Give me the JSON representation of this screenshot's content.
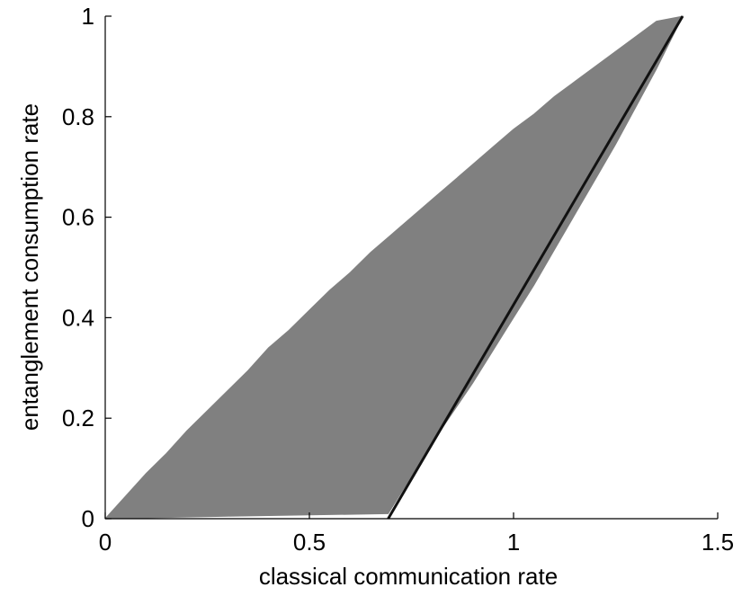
{
  "chart_data": {
    "type": "area",
    "title": "",
    "xlabel": "classical communication rate",
    "ylabel": "entanglement consumption rate",
    "xlim": [
      0,
      1.5
    ],
    "ylim": [
      0,
      1
    ],
    "xticks": [
      "0",
      "0.5",
      "1",
      "1.5"
    ],
    "yticks": [
      "0",
      "0.2",
      "0.4",
      "0.6",
      "0.8",
      "1"
    ],
    "grid": false,
    "legend": "none",
    "colors": {
      "region_fill": "#808080",
      "boundary_line": "#111111",
      "axis": "#000000"
    },
    "region": {
      "name": "",
      "upper_boundary": {
        "x": [
          0,
          0.05,
          0.1,
          0.15,
          0.2,
          0.25,
          0.3,
          0.35,
          0.4,
          0.45,
          0.5,
          0.55,
          0.6,
          0.65,
          0.7,
          0.75,
          0.8,
          0.85,
          0.9,
          0.95,
          1.0,
          1.05,
          1.1,
          1.15,
          1.2,
          1.25,
          1.3,
          1.35,
          1.414
        ],
        "y": [
          0,
          0.045,
          0.09,
          0.13,
          0.175,
          0.215,
          0.255,
          0.295,
          0.34,
          0.375,
          0.415,
          0.455,
          0.49,
          0.53,
          0.565,
          0.6,
          0.635,
          0.67,
          0.705,
          0.74,
          0.775,
          0.805,
          0.84,
          0.87,
          0.9,
          0.93,
          0.96,
          0.99,
          1.0
        ]
      },
      "lower_boundary": {
        "x": [
          0,
          0.3,
          0.693,
          0.75,
          0.8,
          0.85,
          0.9,
          0.95,
          1.0,
          1.05,
          1.1,
          1.15,
          1.2,
          1.25,
          1.3,
          1.35,
          1.414
        ],
        "y": [
          0,
          0.005,
          0.01,
          0.085,
          0.15,
          0.21,
          0.27,
          0.335,
          0.4,
          0.465,
          0.535,
          0.605,
          0.675,
          0.745,
          0.82,
          0.895,
          1.0
        ]
      }
    },
    "series": [
      {
        "name": "",
        "type": "line",
        "x": [
          0.693,
          1.414
        ],
        "y": [
          0,
          1
        ]
      }
    ]
  }
}
